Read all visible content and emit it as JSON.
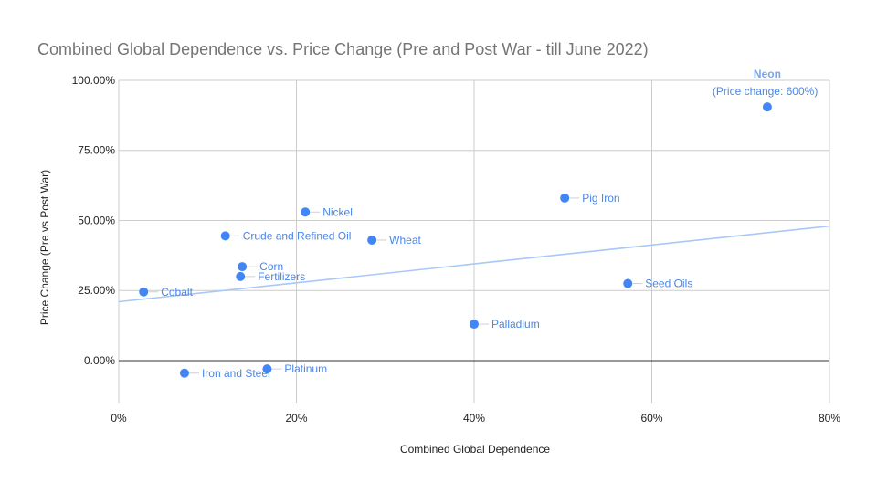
{
  "chart_data": {
    "type": "scatter",
    "title": "Combined Global Dependence vs. Price Change (Pre and Post War - till June 2022)",
    "xlabel": "Combined Global Dependence",
    "ylabel": "Price Change (Pre vs Post War)",
    "xlim": [
      0,
      80
    ],
    "ylim": [
      -15,
      100
    ],
    "x_ticks": [
      0,
      20,
      40,
      60,
      80
    ],
    "x_tick_labels": [
      "0%",
      "20%",
      "40%",
      "60%",
      "80%"
    ],
    "y_ticks": [
      0,
      25,
      50,
      75,
      100
    ],
    "y_tick_labels": [
      "0.00%",
      "25.00%",
      "50.00%",
      "75.00%",
      "100.00%"
    ],
    "grid": true,
    "point_color": "#4285f4",
    "label_color": "#4a86e8",
    "trendline_color": "#a8c7fa",
    "trendline": {
      "x": [
        0,
        80
      ],
      "y": [
        21,
        48
      ]
    },
    "points": [
      {
        "label": "Neon",
        "x": 73,
        "y": 90.5
      },
      {
        "label": "Pig Iron",
        "x": 50.2,
        "y": 58
      },
      {
        "label": "Nickel",
        "x": 21,
        "y": 53
      },
      {
        "label": "Crude and Refined Oil",
        "x": 12,
        "y": 44.5
      },
      {
        "label": "Wheat",
        "x": 28.5,
        "y": 43
      },
      {
        "label": "Corn",
        "x": 13.9,
        "y": 33.5
      },
      {
        "label": "Fertilizers",
        "x": 13.7,
        "y": 30
      },
      {
        "label": "Seed Oils",
        "x": 57.3,
        "y": 27.5
      },
      {
        "label": "Cobalt",
        "x": 2.8,
        "y": 24.5
      },
      {
        "label": "Palladium",
        "x": 40,
        "y": 13
      },
      {
        "label": "Platinum",
        "x": 16.7,
        "y": -3
      },
      {
        "label": "Iron and Steel",
        "x": 7.4,
        "y": -4.5
      }
    ],
    "annotations": [
      {
        "point": "Neon",
        "text": "(Price change: 600%)"
      }
    ]
  }
}
